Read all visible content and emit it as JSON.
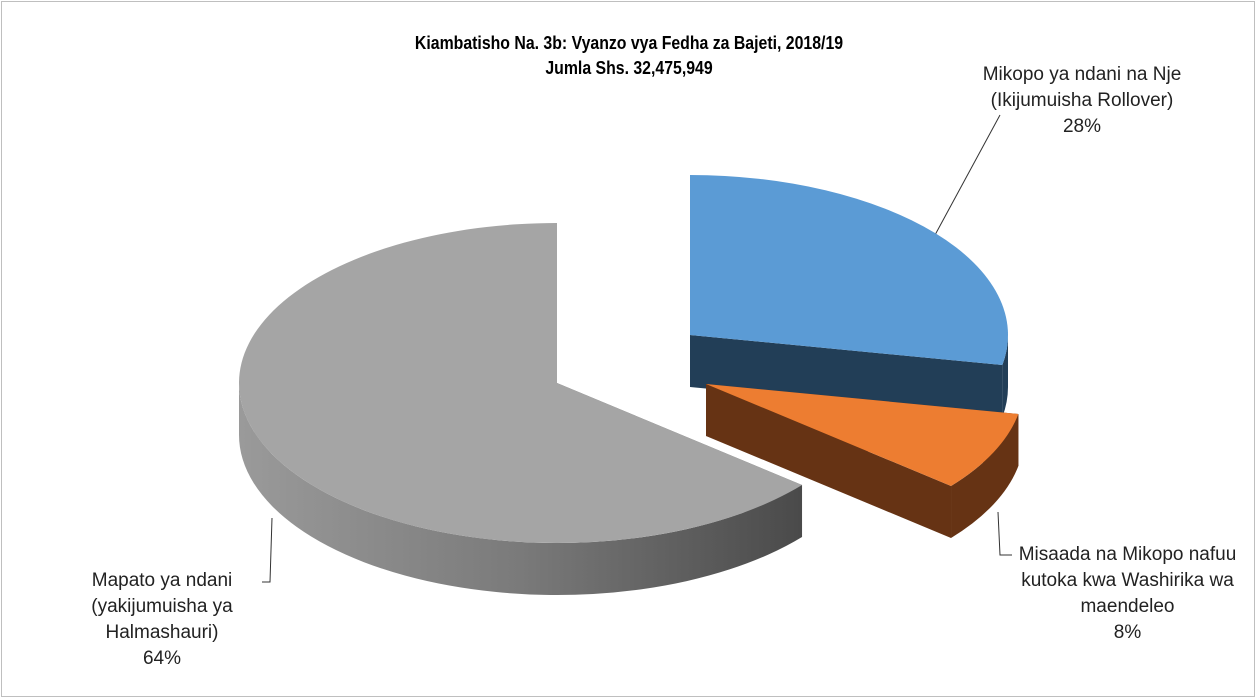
{
  "chart_data": {
    "type": "pie",
    "title": "Kiambatisho Na. 3b: Vyanzo vya Fedha za Bajeti, 2018/19",
    "subtitle": "Jumla Shs. 32,475,949",
    "categories": [
      "Mikopo ya ndani na Nje (Ikijumuisha Rollover)",
      "Misaada na Mikopo nafuu kutoka kwa Washirika wa maendeleo",
      "Mapato ya ndani (yakijumuisha ya Halmashauri)"
    ],
    "values": [
      28,
      8,
      64
    ],
    "value_labels": [
      "28%",
      "8%",
      "64%"
    ],
    "colors": [
      "#5b9bd5",
      "#ed7d31",
      "#a5a5a5"
    ]
  }
}
